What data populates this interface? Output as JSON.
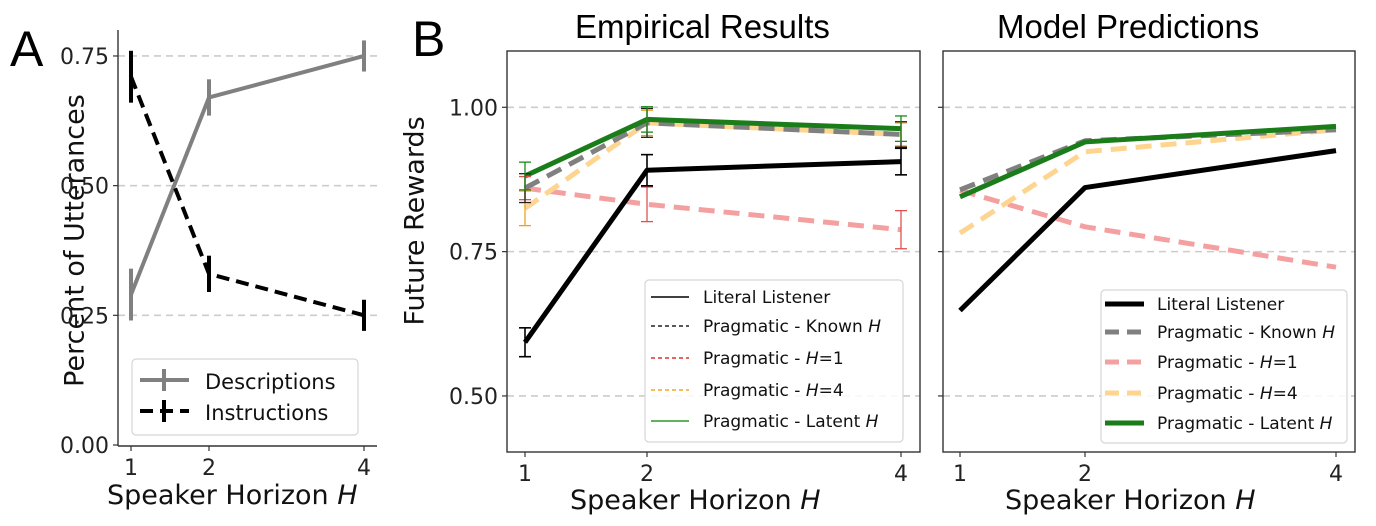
{
  "figure": {
    "panel_a_letter": "A",
    "panel_b_letter": "B",
    "colors": {
      "descriptions": "#808080",
      "instructions": "#000000",
      "literal": "#000000",
      "known": "#808080",
      "h1": "#f4a0a0",
      "h4": "#fdd590",
      "latent": "#1a7d1a",
      "grid": "#cccccc",
      "legend_known_emp": "#222222",
      "legend_h1_emp": "#e03030",
      "legend_h4_emp": "#f5a623",
      "legend_latent_emp": "#2a9a2a"
    }
  },
  "chart_data": [
    {
      "id": "panel-a",
      "type": "line",
      "title": "",
      "xlabel": "Speaker Horizon H",
      "ylabel": "Percent of Utterances",
      "x": [
        1,
        2,
        4
      ],
      "x_tick_labels": [
        "1",
        "2",
        "4"
      ],
      "y_ticks": [
        0.0,
        0.25,
        0.5,
        0.75
      ],
      "y_tick_labels": [
        "0.00",
        "0.25",
        "0.50",
        "0.75"
      ],
      "ylim": [
        0.0,
        0.8
      ],
      "grid": "horizontal dashed",
      "legend_position": "lower right",
      "series": [
        {
          "name": "Descriptions",
          "values": [
            0.29,
            0.67,
            0.75
          ],
          "error": [
            0.05,
            0.035,
            0.03
          ],
          "style": "solid",
          "color": "#808080"
        },
        {
          "name": "Instructions",
          "values": [
            0.71,
            0.33,
            0.25
          ],
          "error": [
            0.05,
            0.035,
            0.03
          ],
          "style": "dashed",
          "color": "#000000"
        }
      ]
    },
    {
      "id": "panel-b-empirical",
      "type": "line",
      "title": "Empirical Results",
      "xlabel": "Speaker Horizon H",
      "ylabel": "Future Rewards",
      "x": [
        1,
        2,
        4
      ],
      "x_tick_labels": [
        "1",
        "2",
        "4"
      ],
      "y_ticks": [
        0.5,
        0.75,
        1.0
      ],
      "y_tick_labels": [
        "0.50",
        "0.75",
        "1.00"
      ],
      "ylim": [
        0.4,
        1.1
      ],
      "grid": "horizontal dashed",
      "legend_position": "lower right",
      "series": [
        {
          "name": "Literal Listener",
          "values": [
            0.593,
            0.891,
            0.906
          ],
          "error": [
            0.025,
            0.027,
            0.023
          ],
          "style": "solid",
          "color": "#000000"
        },
        {
          "name": "Pragmatic - Known H",
          "values": [
            0.86,
            0.973,
            0.953
          ],
          "error": [
            0.025,
            0.025,
            0.022
          ],
          "style": "dashed",
          "color": "#808080"
        },
        {
          "name": "Pragmatic - H=1",
          "values": [
            0.86,
            0.832,
            0.788
          ],
          "error": [
            0.02,
            0.03,
            0.033
          ],
          "style": "dashed",
          "color": "#f4a0a0"
        },
        {
          "name": "Pragmatic - H=4",
          "values": [
            0.825,
            0.973,
            0.953
          ],
          "error": [
            0.03,
            0.022,
            0.02
          ],
          "style": "dashed",
          "color": "#fdd590"
        },
        {
          "name": "Pragmatic - Latent H",
          "values": [
            0.881,
            0.979,
            0.963
          ],
          "error": [
            0.024,
            0.022,
            0.022
          ],
          "style": "solid",
          "color": "#1a7d1a"
        }
      ]
    },
    {
      "id": "panel-b-model",
      "type": "line",
      "title": "Model Predictions",
      "xlabel": "Speaker Horizon H",
      "ylabel": "",
      "x": [
        1,
        2,
        4
      ],
      "x_tick_labels": [
        "1",
        "2",
        "4"
      ],
      "y_ticks": [
        0.5,
        0.75,
        1.0
      ],
      "y_tick_labels": [],
      "ylim": [
        0.4,
        1.1
      ],
      "grid": "horizontal dashed",
      "legend_position": "lower right",
      "series": [
        {
          "name": "Literal Listener",
          "values": [
            0.648,
            0.861,
            0.925
          ],
          "style": "solid",
          "color": "#000000"
        },
        {
          "name": "Pragmatic - Known H",
          "values": [
            0.857,
            0.942,
            0.961
          ],
          "style": "dashed",
          "color": "#808080"
        },
        {
          "name": "Pragmatic - H=1",
          "values": [
            0.856,
            0.793,
            0.723
          ],
          "style": "dashed",
          "color": "#f4a0a0"
        },
        {
          "name": "Pragmatic - H=4",
          "values": [
            0.782,
            0.923,
            0.961
          ],
          "style": "dashed",
          "color": "#fdd590"
        },
        {
          "name": "Pragmatic - Latent H",
          "values": [
            0.845,
            0.94,
            0.967
          ],
          "style": "solid",
          "color": "#1a7d1a"
        }
      ]
    }
  ],
  "legend_labels": {
    "descriptions": "Descriptions",
    "instructions": "Instructions",
    "literal": "Literal Listener",
    "known_prefix": "Pragmatic - Known ",
    "h1_prefix": "Pragmatic - ",
    "h1_suffix": "=1",
    "h4_prefix": "Pragmatic - ",
    "h4_suffix": "=4",
    "latent_prefix": "Pragmatic - Latent ",
    "h_var": "H"
  },
  "labels": {
    "panel_a_ylabel": "Percent of Utterances",
    "panel_b_ylabel": "Future Rewards",
    "xlabel_prefix": "Speaker Horizon ",
    "xlabel_var": "H",
    "empirical_title": "Empirical Results",
    "model_title": "Model Predictions"
  }
}
